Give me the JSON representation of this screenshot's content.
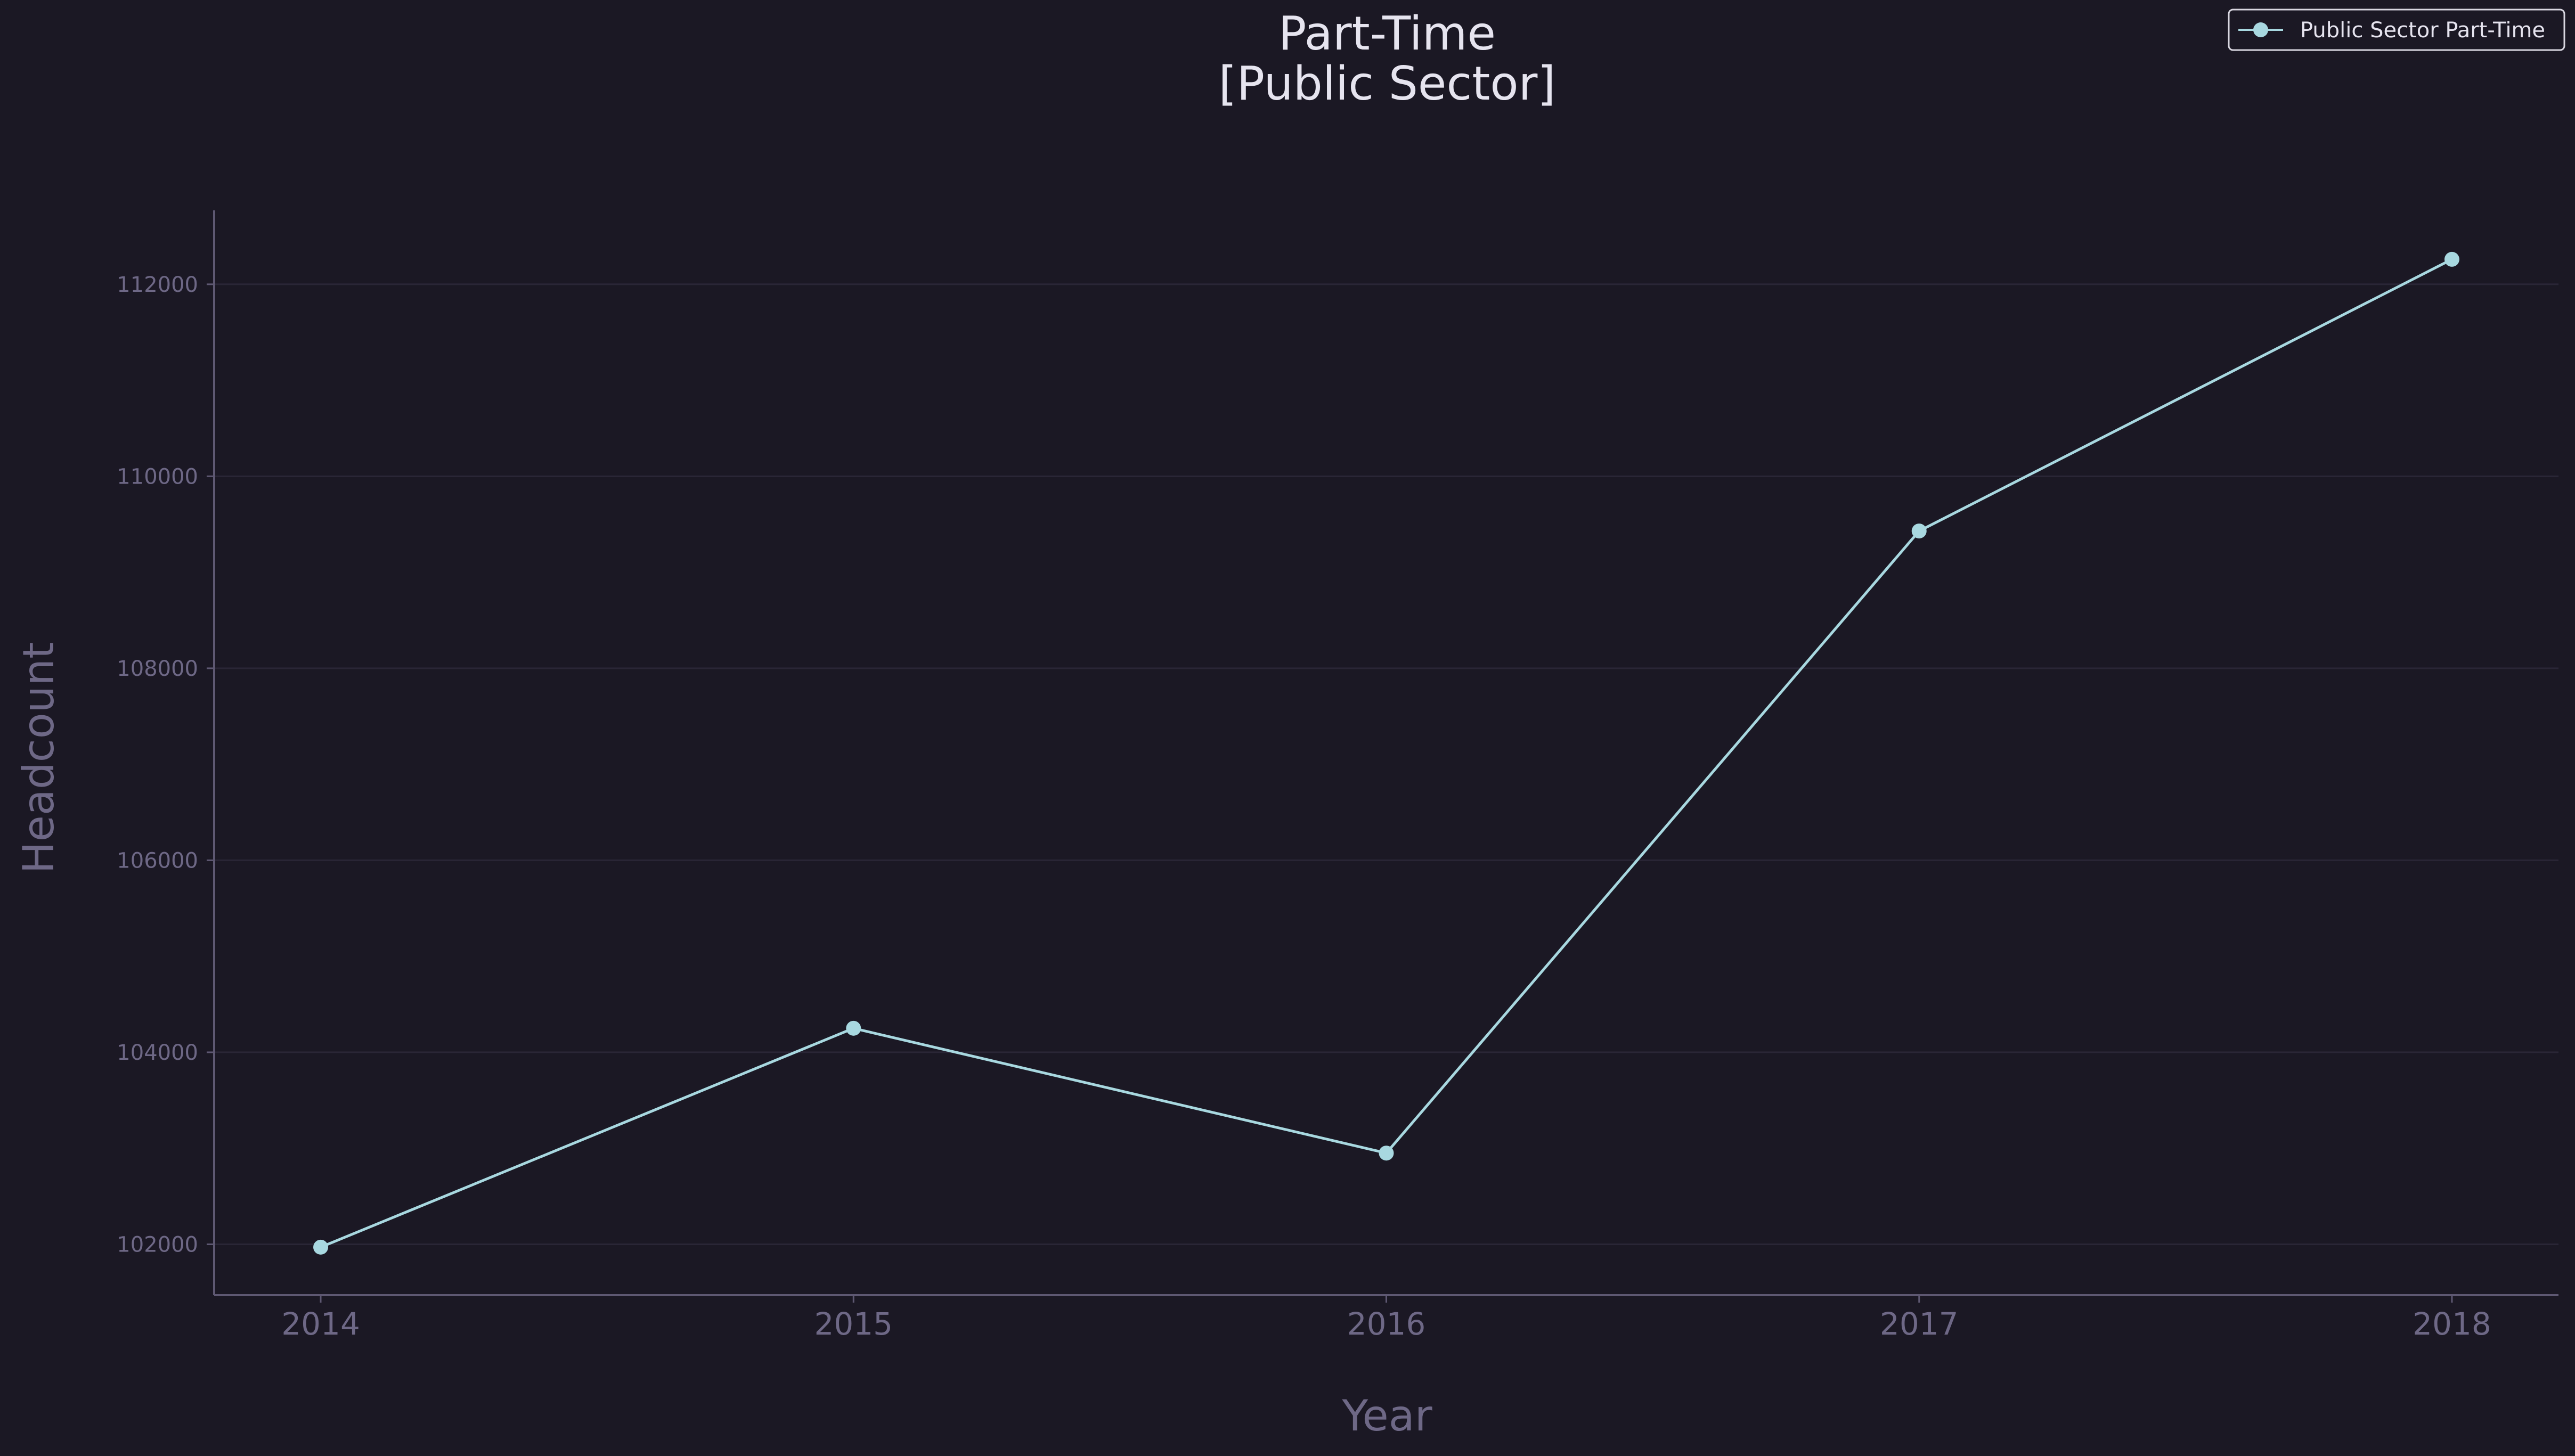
{
  "chart_data": {
    "type": "line",
    "title_line1": "Part-Time",
    "title_line2": "[Public Sector]",
    "xlabel": "Year",
    "ylabel": "Headcount",
    "x": [
      2014,
      2015,
      2016,
      2017,
      2018
    ],
    "x_tick_labels": [
      "2014",
      "2015",
      "2016",
      "2017",
      "2018"
    ],
    "y_ticks": [
      102000,
      104000,
      106000,
      108000,
      110000,
      112000
    ],
    "y_tick_labels": [
      "102000",
      "104000",
      "106000",
      "108000",
      "110000",
      "112000"
    ],
    "ylim": [
      101470,
      112770
    ],
    "xlim": [
      2013.8,
      2018.2
    ],
    "grid": true,
    "legend_position": "top-right",
    "series": [
      {
        "name": "Public Sector Part-Time",
        "values": [
          101970,
          104250,
          102950,
          109430,
          112260
        ],
        "color": "#a8d8e0"
      }
    ],
    "colors": {
      "background": "#1b1824",
      "grid": "#2a2636",
      "axis": "#5e5872",
      "text_muted": "#6e6886",
      "text_bright": "#e6e4ef"
    }
  }
}
